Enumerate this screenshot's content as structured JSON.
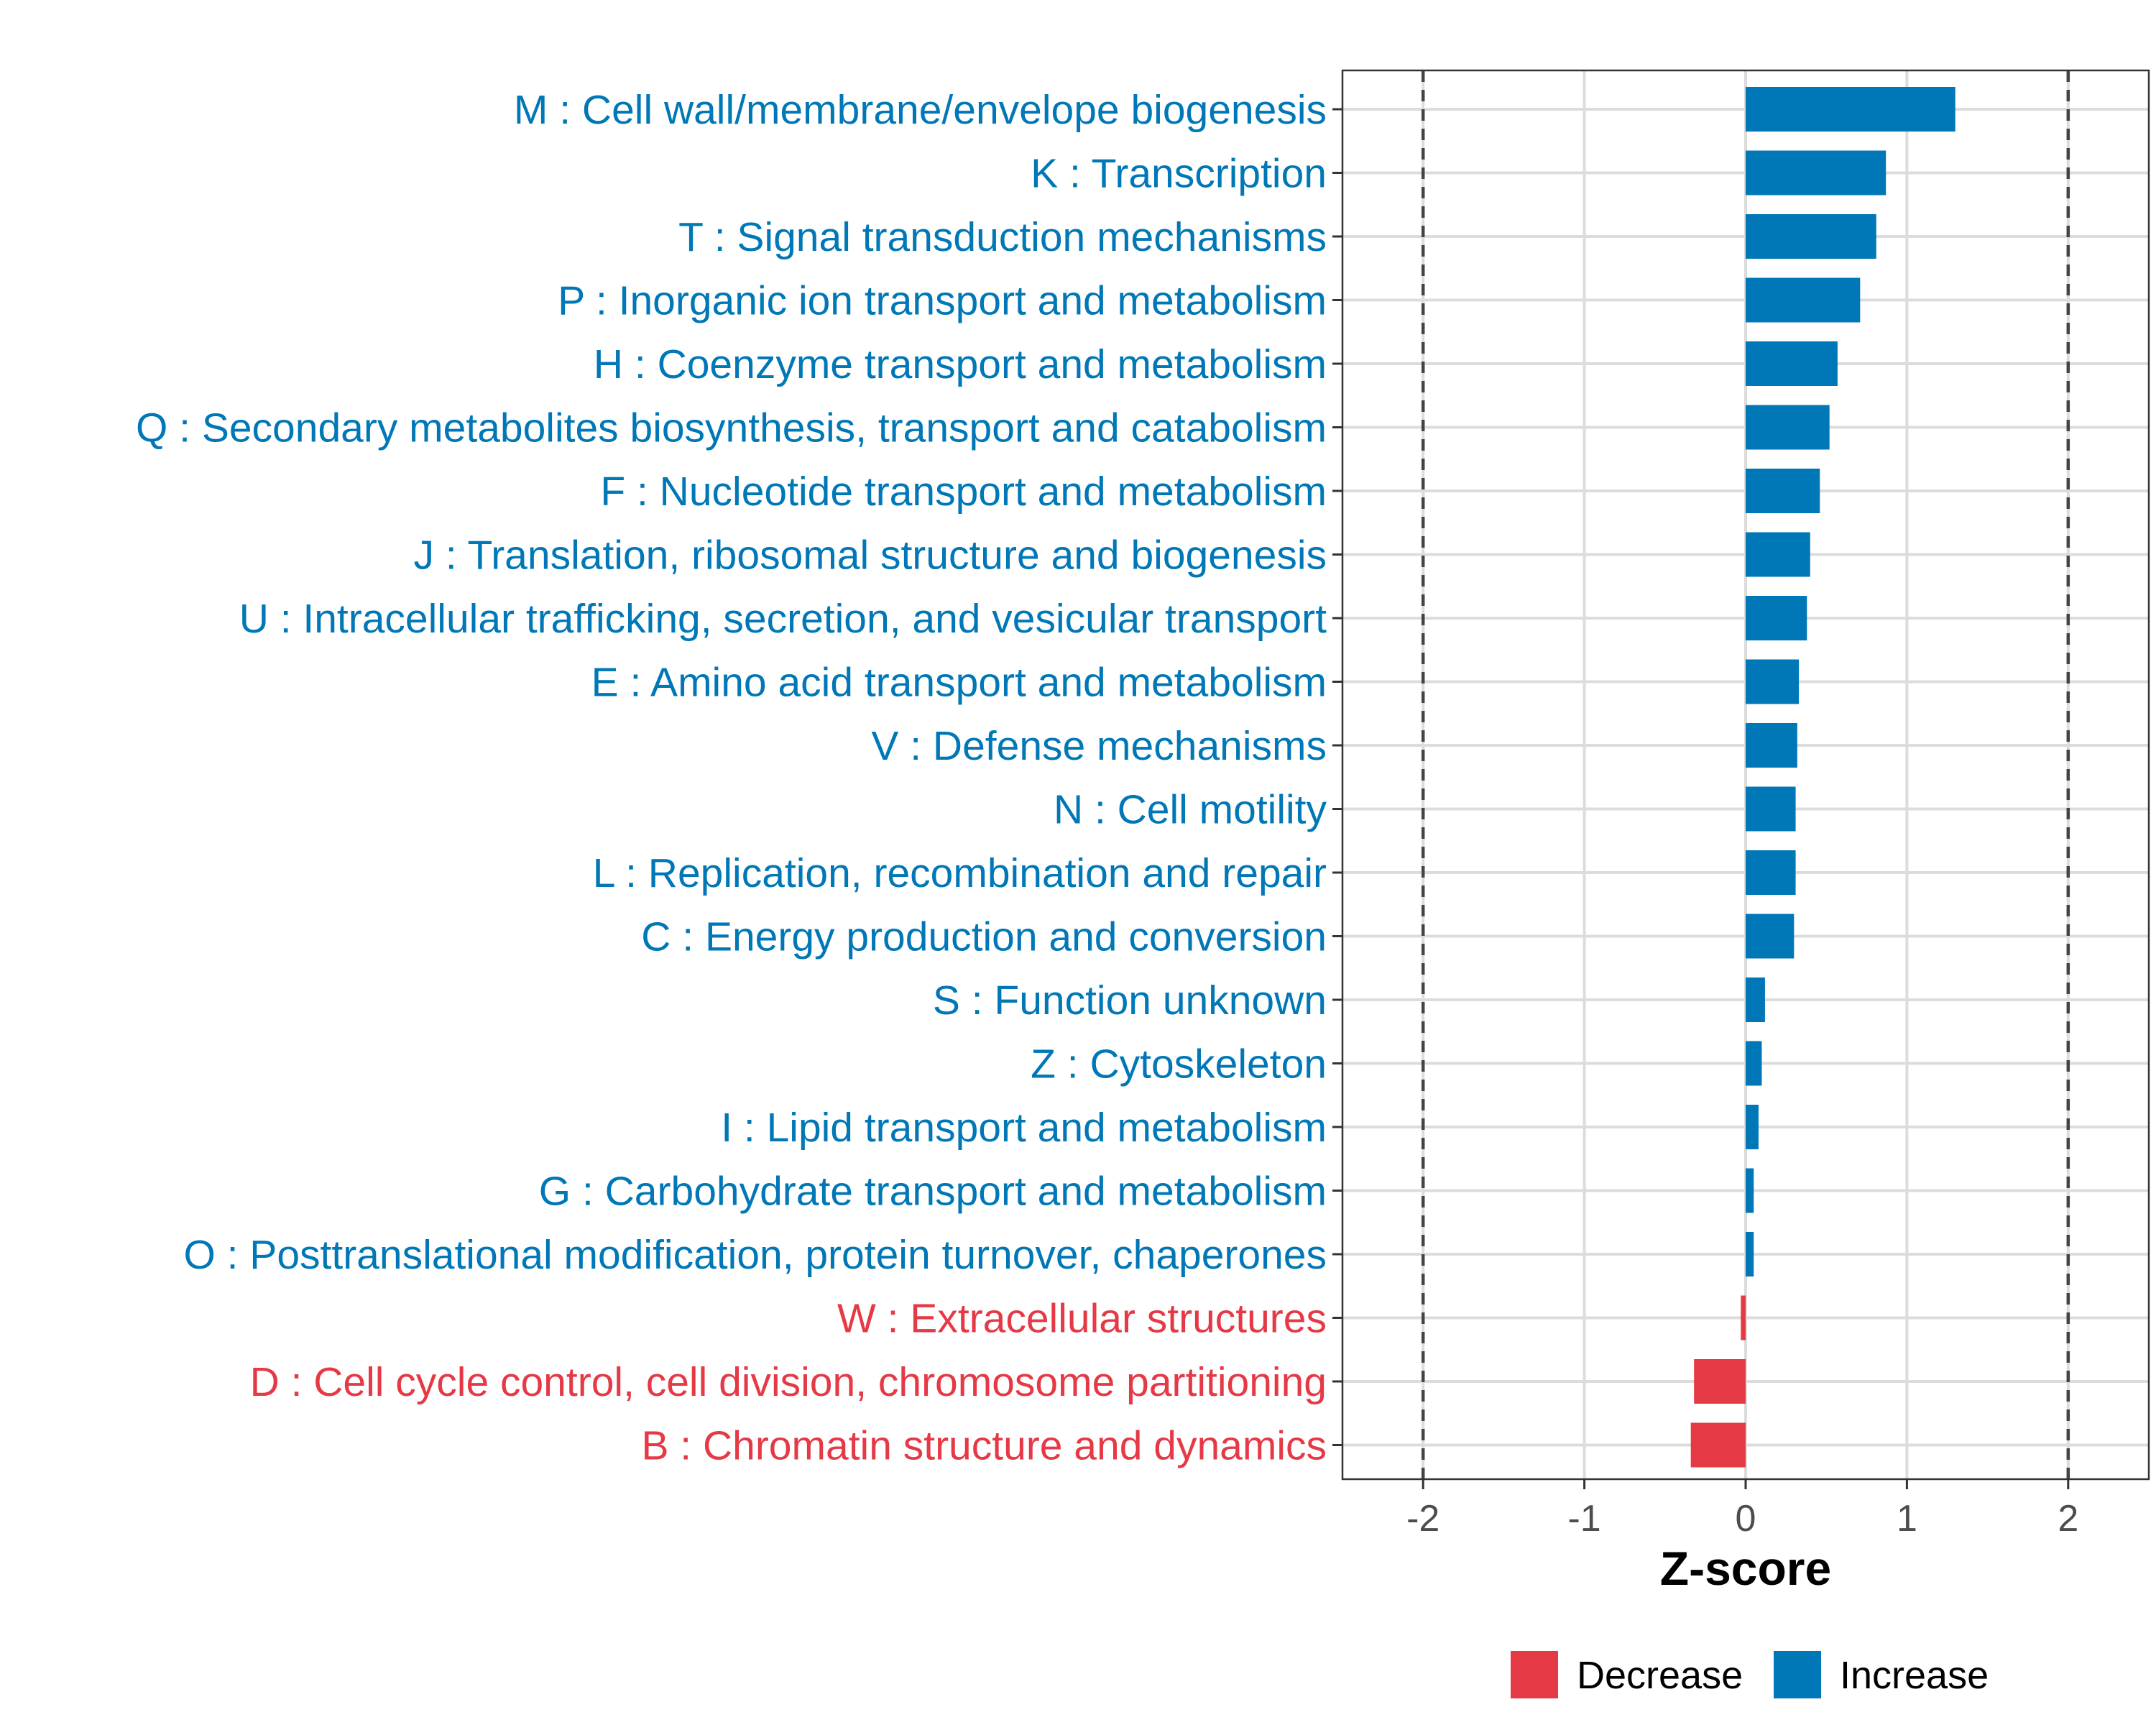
{
  "chart_data": {
    "type": "bar",
    "orientation": "horizontal",
    "xlabel": "Z-score",
    "xlim": [
      -2.5,
      2.5
    ],
    "x_ticks": [
      -2,
      -1,
      0,
      1,
      2
    ],
    "x_tick_labels": [
      "-2",
      "-1",
      "0",
      "1",
      "2"
    ],
    "reference_lines": [
      -2,
      2
    ],
    "colors": {
      "Increase": "#0077b6",
      "Decrease": "#e63946"
    },
    "legend": [
      {
        "label": "Decrease",
        "color": "#e63946"
      },
      {
        "label": "Increase",
        "color": "#0077b6"
      }
    ],
    "legend_position": "bottom-right",
    "categories": [
      "M : Cell wall/membrane/envelope biogenesis",
      "K : Transcription",
      "T : Signal transduction mechanisms",
      "P : Inorganic ion transport and metabolism",
      "H : Coenzyme transport and metabolism",
      "Q : Secondary metabolites biosynthesis, transport and catabolism",
      "F : Nucleotide transport and metabolism",
      "J : Translation, ribosomal structure and biogenesis",
      "U : Intracellular trafficking, secretion, and vesicular transport",
      "E : Amino acid transport and metabolism",
      "V : Defense mechanisms",
      "N : Cell motility",
      "L : Replication, recombination and repair",
      "C : Energy production and conversion",
      "S : Function unknown",
      "Z : Cytoskeleton",
      "I : Lipid transport and metabolism",
      "G : Carbohydrate transport and metabolism",
      "O : Posttranslational modification, protein turnover, chaperones",
      "W : Extracellular structures",
      "D : Cell cycle control, cell division, chromosome partitioning",
      "B : Chromatin structure and dynamics"
    ],
    "values": [
      1.3,
      0.87,
      0.81,
      0.71,
      0.57,
      0.52,
      0.46,
      0.4,
      0.38,
      0.33,
      0.32,
      0.31,
      0.31,
      0.3,
      0.12,
      0.1,
      0.08,
      0.05,
      0.05,
      -0.03,
      -0.32,
      -0.34
    ],
    "direction": [
      "Increase",
      "Increase",
      "Increase",
      "Increase",
      "Increase",
      "Increase",
      "Increase",
      "Increase",
      "Increase",
      "Increase",
      "Increase",
      "Increase",
      "Increase",
      "Increase",
      "Increase",
      "Increase",
      "Increase",
      "Increase",
      "Increase",
      "Decrease",
      "Decrease",
      "Decrease"
    ]
  }
}
